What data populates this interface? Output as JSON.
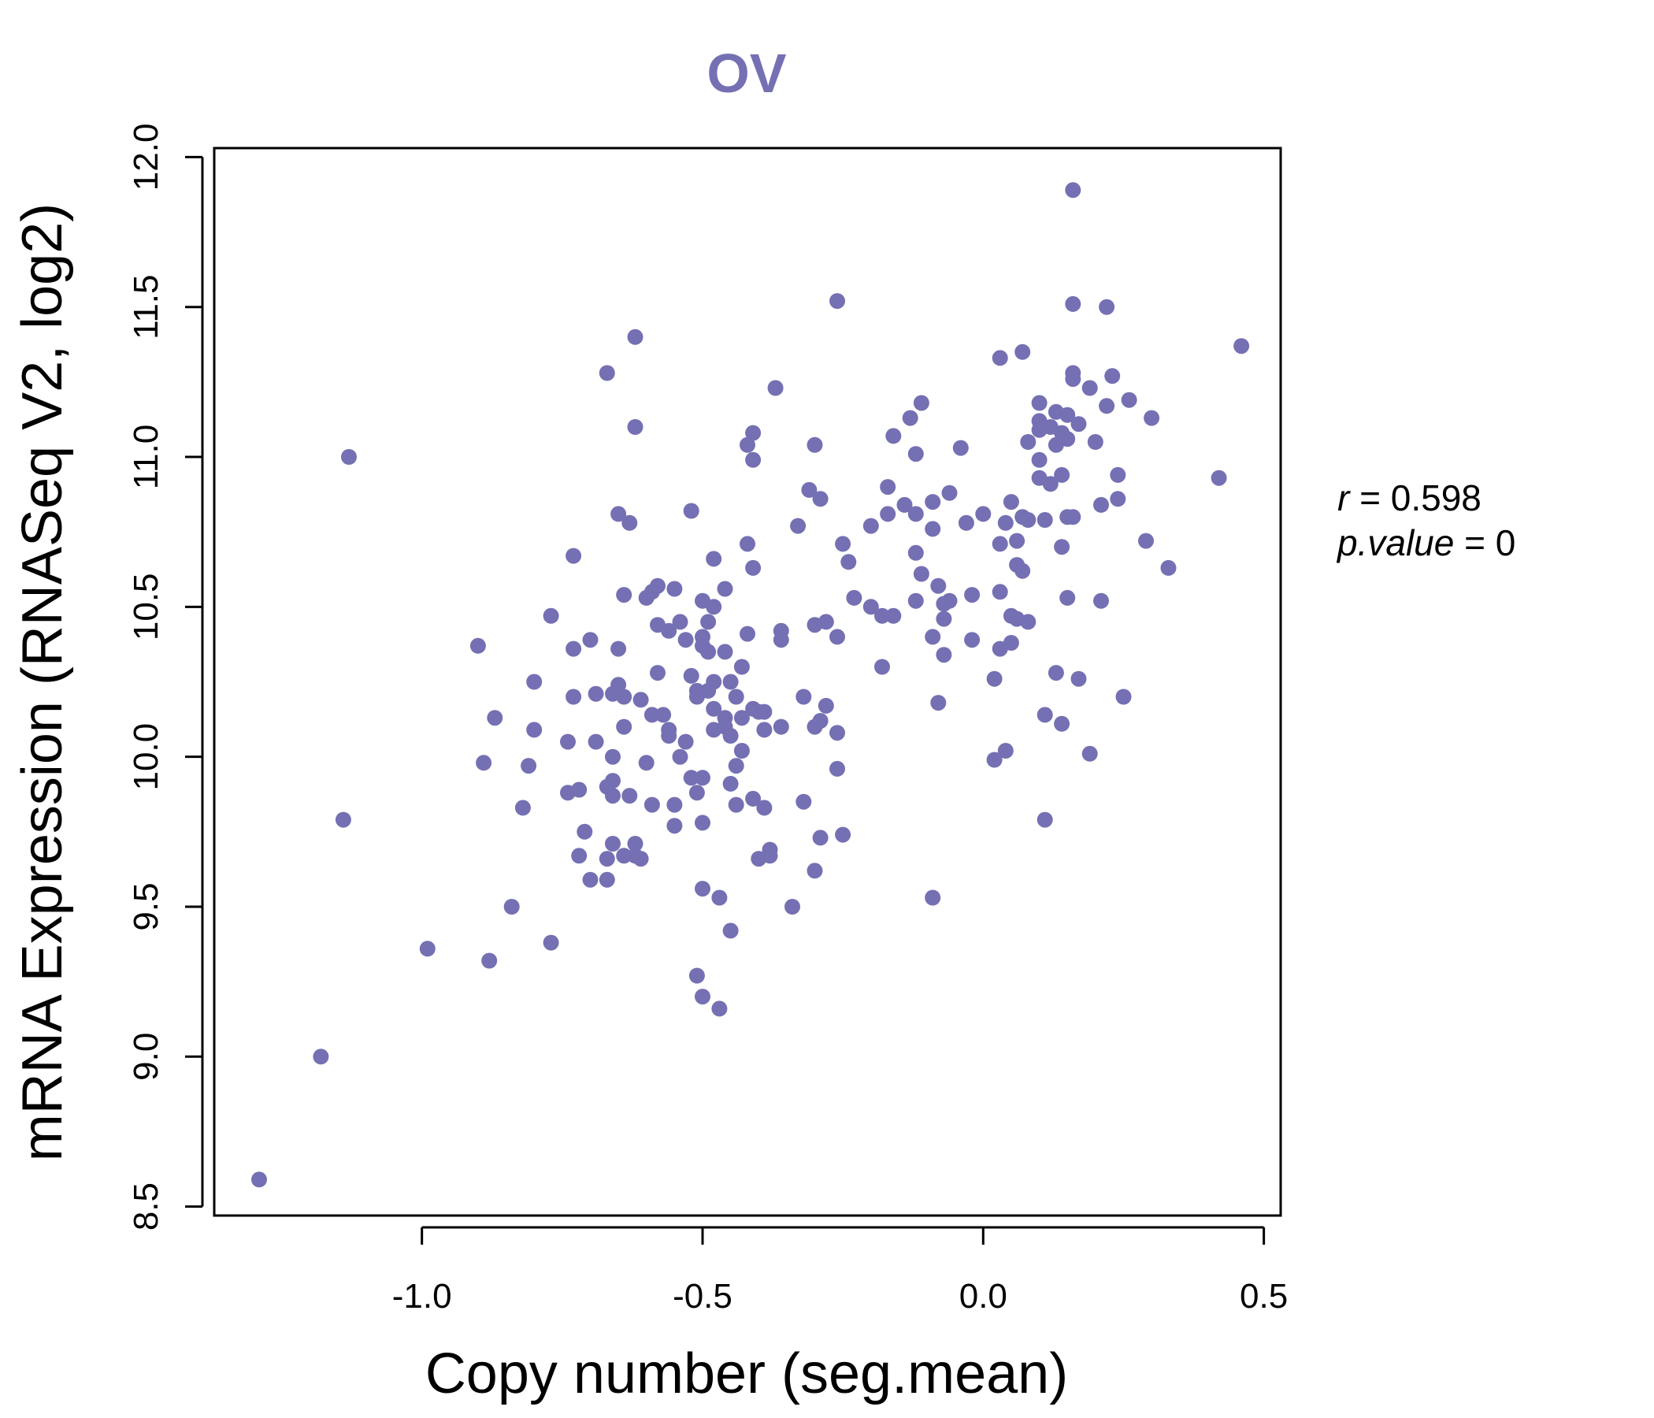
{
  "chart_data": {
    "type": "scatter",
    "title": "OV",
    "xlabel": "Copy number (seg.mean)",
    "ylabel": "mRNA Expression (RNASeq V2, log2)",
    "xlim": [
      -1.37,
      0.53
    ],
    "ylim": [
      8.47,
      12.03
    ],
    "xticks": [
      -1.0,
      -0.5,
      0.0,
      0.5
    ],
    "xtick_labels": [
      "-1.0",
      "-0.5",
      "0.0",
      "0.5"
    ],
    "yticks": [
      8.5,
      9.0,
      9.5,
      10.0,
      10.5,
      11.0,
      11.5,
      12.0
    ],
    "ytick_labels": [
      "8.5",
      "9.0",
      "9.5",
      "10.0",
      "10.5",
      "11.0",
      "11.5",
      "12.0"
    ],
    "stat_r": {
      "label": "r",
      "value": "0.598"
    },
    "stat_p": {
      "label": "p.value",
      "value": "0"
    },
    "point_color": "#7570b3",
    "points": [
      [
        -1.29,
        8.59
      ],
      [
        -1.18,
        9.0
      ],
      [
        -1.14,
        9.79
      ],
      [
        -1.13,
        11.0
      ],
      [
        -0.99,
        9.36
      ],
      [
        -0.9,
        10.37
      ],
      [
        -0.89,
        9.98
      ],
      [
        -0.88,
        9.32
      ],
      [
        -0.87,
        10.13
      ],
      [
        -0.84,
        9.5
      ],
      [
        -0.82,
        9.83
      ],
      [
        -0.81,
        9.97
      ],
      [
        -0.8,
        10.09
      ],
      [
        -0.8,
        10.25
      ],
      [
        -0.77,
        9.38
      ],
      [
        -0.77,
        10.47
      ],
      [
        -0.74,
        10.05
      ],
      [
        -0.74,
        9.88
      ],
      [
        -0.73,
        10.36
      ],
      [
        -0.73,
        10.2
      ],
      [
        -0.73,
        10.67
      ],
      [
        -0.72,
        9.89
      ],
      [
        -0.72,
        9.67
      ],
      [
        -0.71,
        9.75
      ],
      [
        -0.7,
        9.59
      ],
      [
        -0.7,
        10.39
      ],
      [
        -0.69,
        10.21
      ],
      [
        -0.69,
        10.05
      ],
      [
        -0.67,
        11.28
      ],
      [
        -0.67,
        9.9
      ],
      [
        -0.67,
        9.66
      ],
      [
        -0.67,
        9.59
      ],
      [
        -0.66,
        10.21
      ],
      [
        -0.66,
        10.0
      ],
      [
        -0.66,
        9.92
      ],
      [
        -0.66,
        9.87
      ],
      [
        -0.66,
        9.71
      ],
      [
        -0.65,
        10.81
      ],
      [
        -0.65,
        10.36
      ],
      [
        -0.65,
        10.24
      ],
      [
        -0.64,
        10.54
      ],
      [
        -0.64,
        10.2
      ],
      [
        -0.64,
        10.1
      ],
      [
        -0.64,
        9.67
      ],
      [
        -0.63,
        10.78
      ],
      [
        -0.63,
        9.87
      ],
      [
        -0.62,
        9.71
      ],
      [
        -0.62,
        9.67
      ],
      [
        -0.62,
        11.1
      ],
      [
        -0.62,
        11.4
      ],
      [
        -0.61,
        9.66
      ],
      [
        -0.61,
        10.19
      ],
      [
        -0.6,
        10.53
      ],
      [
        -0.6,
        9.98
      ],
      [
        -0.59,
        10.14
      ],
      [
        -0.59,
        10.55
      ],
      [
        -0.59,
        9.84
      ],
      [
        -0.58,
        10.28
      ],
      [
        -0.58,
        10.57
      ],
      [
        -0.58,
        10.44
      ],
      [
        -0.57,
        10.14
      ],
      [
        -0.56,
        10.42
      ],
      [
        -0.56,
        10.09
      ],
      [
        -0.56,
        10.07
      ],
      [
        -0.55,
        10.56
      ],
      [
        -0.55,
        9.77
      ],
      [
        -0.55,
        9.84
      ],
      [
        -0.54,
        10.45
      ],
      [
        -0.54,
        10.0
      ],
      [
        -0.53,
        10.05
      ],
      [
        -0.53,
        10.39
      ],
      [
        -0.52,
        9.93
      ],
      [
        -0.52,
        10.82
      ],
      [
        -0.52,
        10.27
      ],
      [
        -0.51,
        10.22
      ],
      [
        -0.51,
        10.2
      ],
      [
        -0.51,
        9.88
      ],
      [
        -0.51,
        9.27
      ],
      [
        -0.5,
        10.52
      ],
      [
        -0.5,
        10.37
      ],
      [
        -0.5,
        10.4
      ],
      [
        -0.5,
        9.78
      ],
      [
        -0.5,
        9.93
      ],
      [
        -0.5,
        9.56
      ],
      [
        -0.5,
        9.2
      ],
      [
        -0.49,
        10.45
      ],
      [
        -0.49,
        10.35
      ],
      [
        -0.49,
        10.22
      ],
      [
        -0.48,
        10.16
      ],
      [
        -0.48,
        10.09
      ],
      [
        -0.48,
        10.5
      ],
      [
        -0.48,
        10.25
      ],
      [
        -0.48,
        10.66
      ],
      [
        -0.47,
        9.53
      ],
      [
        -0.47,
        9.16
      ],
      [
        -0.46,
        10.56
      ],
      [
        -0.46,
        10.35
      ],
      [
        -0.46,
        10.13
      ],
      [
        -0.46,
        10.1
      ],
      [
        -0.45,
        10.07
      ],
      [
        -0.45,
        10.25
      ],
      [
        -0.45,
        9.91
      ],
      [
        -0.45,
        9.42
      ],
      [
        -0.44,
        9.84
      ],
      [
        -0.44,
        9.97
      ],
      [
        -0.44,
        10.2
      ],
      [
        -0.43,
        10.3
      ],
      [
        -0.43,
        10.13
      ],
      [
        -0.43,
        10.02
      ],
      [
        -0.42,
        10.71
      ],
      [
        -0.42,
        11.04
      ],
      [
        -0.42,
        10.41
      ],
      [
        -0.41,
        11.08
      ],
      [
        -0.41,
        10.99
      ],
      [
        -0.41,
        10.63
      ],
      [
        -0.41,
        10.16
      ],
      [
        -0.41,
        9.86
      ],
      [
        -0.4,
        10.15
      ],
      [
        -0.4,
        9.66
      ],
      [
        -0.39,
        10.15
      ],
      [
        -0.39,
        10.09
      ],
      [
        -0.39,
        9.83
      ],
      [
        -0.38,
        9.69
      ],
      [
        -0.38,
        9.67
      ],
      [
        -0.37,
        11.23
      ],
      [
        -0.36,
        10.42
      ],
      [
        -0.36,
        10.39
      ],
      [
        -0.36,
        10.1
      ],
      [
        -0.34,
        9.5
      ],
      [
        -0.33,
        10.77
      ],
      [
        -0.32,
        10.2
      ],
      [
        -0.32,
        9.85
      ],
      [
        -0.31,
        10.89
      ],
      [
        -0.3,
        11.04
      ],
      [
        -0.3,
        10.1
      ],
      [
        -0.3,
        9.62
      ],
      [
        -0.3,
        10.44
      ],
      [
        -0.29,
        10.86
      ],
      [
        -0.29,
        10.12
      ],
      [
        -0.29,
        9.73
      ],
      [
        -0.28,
        10.17
      ],
      [
        -0.28,
        10.45
      ],
      [
        -0.26,
        9.96
      ],
      [
        -0.26,
        10.4
      ],
      [
        -0.26,
        10.08
      ],
      [
        -0.26,
        11.52
      ],
      [
        -0.25,
        10.71
      ],
      [
        -0.25,
        9.74
      ],
      [
        -0.24,
        10.65
      ],
      [
        -0.23,
        10.53
      ],
      [
        -0.2,
        10.77
      ],
      [
        -0.2,
        10.5
      ],
      [
        -0.18,
        10.3
      ],
      [
        -0.18,
        10.47
      ],
      [
        -0.17,
        10.9
      ],
      [
        -0.17,
        10.81
      ],
      [
        -0.16,
        11.07
      ],
      [
        -0.16,
        10.47
      ],
      [
        -0.14,
        10.84
      ],
      [
        -0.13,
        11.13
      ],
      [
        -0.12,
        11.01
      ],
      [
        -0.12,
        10.81
      ],
      [
        -0.12,
        10.68
      ],
      [
        -0.12,
        10.52
      ],
      [
        -0.11,
        11.18
      ],
      [
        -0.11,
        10.61
      ],
      [
        -0.09,
        10.85
      ],
      [
        -0.09,
        10.76
      ],
      [
        -0.09,
        10.4
      ],
      [
        -0.09,
        9.53
      ],
      [
        -0.08,
        10.57
      ],
      [
        -0.08,
        10.18
      ],
      [
        -0.07,
        10.51
      ],
      [
        -0.07,
        10.46
      ],
      [
        -0.07,
        10.34
      ],
      [
        -0.06,
        10.88
      ],
      [
        -0.06,
        10.52
      ],
      [
        -0.04,
        11.03
      ],
      [
        -0.03,
        10.78
      ],
      [
        -0.02,
        10.54
      ],
      [
        -0.02,
        10.39
      ],
      [
        0.0,
        10.81
      ],
      [
        0.02,
        10.26
      ],
      [
        0.02,
        9.99
      ],
      [
        0.03,
        11.33
      ],
      [
        0.03,
        10.71
      ],
      [
        0.03,
        10.55
      ],
      [
        0.03,
        10.36
      ],
      [
        0.04,
        10.78
      ],
      [
        0.04,
        10.02
      ],
      [
        0.05,
        10.85
      ],
      [
        0.05,
        10.47
      ],
      [
        0.05,
        10.38
      ],
      [
        0.06,
        10.72
      ],
      [
        0.06,
        10.64
      ],
      [
        0.06,
        10.46
      ],
      [
        0.07,
        11.35
      ],
      [
        0.07,
        10.8
      ],
      [
        0.07,
        10.62
      ],
      [
        0.08,
        11.05
      ],
      [
        0.08,
        10.79
      ],
      [
        0.08,
        10.45
      ],
      [
        0.1,
        11.18
      ],
      [
        0.1,
        11.12
      ],
      [
        0.1,
        10.99
      ],
      [
        0.1,
        11.09
      ],
      [
        0.1,
        10.93
      ],
      [
        0.11,
        10.79
      ],
      [
        0.11,
        10.14
      ],
      [
        0.11,
        9.79
      ],
      [
        0.12,
        11.1
      ],
      [
        0.12,
        10.91
      ],
      [
        0.13,
        11.15
      ],
      [
        0.13,
        11.04
      ],
      [
        0.13,
        10.28
      ],
      [
        0.14,
        11.08
      ],
      [
        0.14,
        10.94
      ],
      [
        0.14,
        10.7
      ],
      [
        0.14,
        10.11
      ],
      [
        0.15,
        11.14
      ],
      [
        0.15,
        11.06
      ],
      [
        0.15,
        10.8
      ],
      [
        0.15,
        10.53
      ],
      [
        0.16,
        11.89
      ],
      [
        0.16,
        11.51
      ],
      [
        0.16,
        11.28
      ],
      [
        0.16,
        11.26
      ],
      [
        0.16,
        10.8
      ],
      [
        0.17,
        11.11
      ],
      [
        0.17,
        10.26
      ],
      [
        0.19,
        11.23
      ],
      [
        0.19,
        10.01
      ],
      [
        0.2,
        11.05
      ],
      [
        0.21,
        10.84
      ],
      [
        0.21,
        10.52
      ],
      [
        0.22,
        11.5
      ],
      [
        0.22,
        11.17
      ],
      [
        0.23,
        11.27
      ],
      [
        0.24,
        10.86
      ],
      [
        0.24,
        10.94
      ],
      [
        0.25,
        10.2
      ],
      [
        0.26,
        11.19
      ],
      [
        0.29,
        10.72
      ],
      [
        0.3,
        11.13
      ],
      [
        0.33,
        10.63
      ],
      [
        0.42,
        10.93
      ],
      [
        0.46,
        11.37
      ]
    ]
  }
}
